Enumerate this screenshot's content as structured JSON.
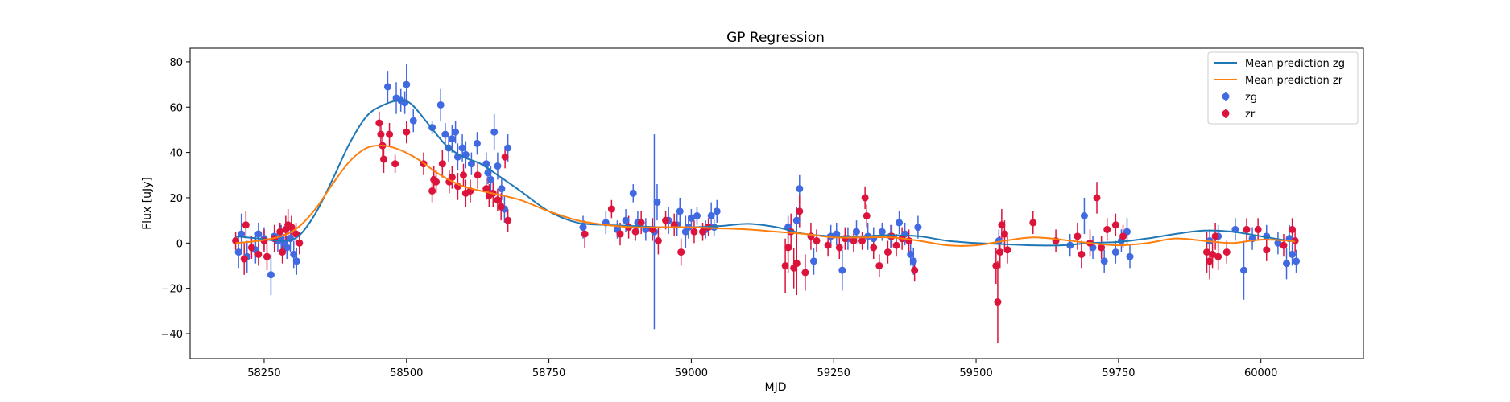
{
  "chart_data": {
    "type": "scatter",
    "title": "GP Regression",
    "xlabel": "MJD",
    "ylabel": "Flux [uJy]",
    "xlim": [
      58120,
      60180
    ],
    "ylim": [
      -51,
      86
    ],
    "xticks": [
      58250,
      58500,
      58750,
      59000,
      59250,
      59500,
      59750,
      60000
    ],
    "yticks": [
      -40,
      -20,
      0,
      20,
      40,
      60,
      80
    ],
    "grid": false,
    "legend_position": "top-right",
    "lines": [
      {
        "name": "Mean prediction zg",
        "color": "#1f77b4",
        "x": [
          58200,
          58240,
          58280,
          58310,
          58340,
          58370,
          58400,
          58430,
          58460,
          58490,
          58510,
          58540,
          58570,
          58600,
          58630,
          58660,
          58700,
          58750,
          58800,
          58850,
          58900,
          58950,
          59000,
          59050,
          59100,
          59150,
          59200,
          59250,
          59300,
          59350,
          59400,
          59450,
          59500,
          59550,
          59600,
          59650,
          59700,
          59750,
          59800,
          59850,
          59900,
          59950,
          60000,
          60050,
          60060
        ],
        "y": [
          3,
          2,
          1,
          3,
          13,
          28,
          44,
          56,
          61,
          63,
          61,
          52,
          43,
          38,
          35,
          30,
          23,
          14,
          9,
          8,
          7.5,
          7,
          7,
          7.5,
          8.5,
          7,
          4,
          3,
          3,
          3.5,
          3,
          1,
          0,
          -0.5,
          -1,
          -1,
          0,
          0.5,
          2,
          4,
          5.5,
          5,
          3,
          1,
          1
        ]
      },
      {
        "name": "Mean prediction zr",
        "color": "#ff7f0e",
        "x": [
          58200,
          58240,
          58280,
          58310,
          58340,
          58370,
          58400,
          58430,
          58460,
          58490,
          58520,
          58560,
          58600,
          58650,
          58700,
          58750,
          58800,
          58850,
          58900,
          58950,
          59000,
          59050,
          59100,
          59150,
          59200,
          59250,
          59300,
          59350,
          59400,
          59450,
          59500,
          59550,
          59600,
          59650,
          59700,
          59750,
          59800,
          59850,
          59900,
          59950,
          60000,
          60050,
          60060
        ],
        "y": [
          0,
          1,
          3,
          7,
          15,
          26,
          36,
          42,
          43,
          41,
          37,
          30,
          25,
          22,
          19,
          14,
          10,
          8,
          7,
          7,
          7,
          6.5,
          6,
          5,
          4,
          2.5,
          2.5,
          2.5,
          1,
          -1,
          -1,
          1,
          2.5,
          1.5,
          0,
          -1,
          0,
          2,
          1,
          0,
          1.5,
          1,
          0.5
        ]
      }
    ],
    "series": [
      {
        "name": "zg",
        "color": "#4169e1",
        "points": [
          [
            58205,
            -4,
            7
          ],
          [
            58210,
            4,
            9
          ],
          [
            58220,
            -6,
            7
          ],
          [
            58235,
            -3,
            6
          ],
          [
            58240,
            4,
            5
          ],
          [
            58250,
            2,
            5
          ],
          [
            58262,
            -14,
            9
          ],
          [
            58268,
            3,
            5
          ],
          [
            58274,
            1,
            5
          ],
          [
            58280,
            2,
            6
          ],
          [
            58285,
            0,
            4
          ],
          [
            58290,
            -2,
            5
          ],
          [
            58296,
            2,
            6
          ],
          [
            58302,
            -5,
            6
          ],
          [
            58307,
            -8,
            6
          ],
          [
            58467,
            69,
            7
          ],
          [
            58482,
            64,
            7
          ],
          [
            58490,
            63,
            5
          ],
          [
            58497,
            62,
            5
          ],
          [
            58500,
            70,
            9
          ],
          [
            58512,
            54,
            5
          ],
          [
            58545,
            51,
            3
          ],
          [
            58560,
            61,
            7
          ],
          [
            58568,
            48,
            5
          ],
          [
            58574,
            42,
            6
          ],
          [
            58580,
            46,
            6
          ],
          [
            58586,
            49,
            5
          ],
          [
            58590,
            38,
            6
          ],
          [
            58598,
            42,
            6
          ],
          [
            58604,
            39,
            6
          ],
          [
            58614,
            35,
            5
          ],
          [
            58624,
            44,
            5
          ],
          [
            58640,
            35,
            5
          ],
          [
            58643,
            31,
            5
          ],
          [
            58648,
            28,
            6
          ],
          [
            58654,
            49,
            8
          ],
          [
            58660,
            34,
            6
          ],
          [
            58667,
            24,
            5
          ],
          [
            58672,
            15,
            6
          ],
          [
            58678,
            42,
            6
          ],
          [
            58810,
            7,
            5
          ],
          [
            58850,
            9,
            5
          ],
          [
            58870,
            6,
            4
          ],
          [
            58885,
            10,
            5
          ],
          [
            58898,
            22,
            4
          ],
          [
            58906,
            9,
            5
          ],
          [
            58920,
            6,
            5
          ],
          [
            58935,
            5,
            43
          ],
          [
            58940,
            18,
            8
          ],
          [
            58960,
            10,
            6
          ],
          [
            58975,
            8,
            5
          ],
          [
            58980,
            14,
            6
          ],
          [
            58990,
            5,
            7
          ],
          [
            58995,
            7,
            5
          ],
          [
            59000,
            11,
            4
          ],
          [
            59010,
            12,
            4
          ],
          [
            59025,
            6,
            4
          ],
          [
            59035,
            12,
            6
          ],
          [
            59040,
            7,
            4
          ],
          [
            59045,
            14,
            5
          ],
          [
            59170,
            7,
            5
          ],
          [
            59185,
            10,
            6
          ],
          [
            59190,
            24,
            6
          ],
          [
            59215,
            -8,
            6
          ],
          [
            59245,
            3,
            5
          ],
          [
            59255,
            4,
            5
          ],
          [
            59265,
            -12,
            9
          ],
          [
            59275,
            2,
            5
          ],
          [
            59290,
            5,
            5
          ],
          [
            59310,
            3,
            6
          ],
          [
            59320,
            2,
            5
          ],
          [
            59335,
            5,
            4
          ],
          [
            59350,
            3,
            5
          ],
          [
            59365,
            9,
            5
          ],
          [
            59375,
            4,
            5
          ],
          [
            59385,
            -5,
            5
          ],
          [
            59390,
            -8,
            6
          ],
          [
            59398,
            7,
            5
          ],
          [
            59540,
            1,
            5
          ],
          [
            59665,
            -1,
            5
          ],
          [
            59690,
            12,
            8
          ],
          [
            59705,
            -2,
            5
          ],
          [
            59725,
            -8,
            5
          ],
          [
            59745,
            -4,
            5
          ],
          [
            59755,
            1,
            5
          ],
          [
            59765,
            5,
            6
          ],
          [
            59770,
            -6,
            5
          ],
          [
            59910,
            1,
            5
          ],
          [
            59925,
            3,
            5
          ],
          [
            59955,
            6,
            5
          ],
          [
            59970,
            -12,
            13
          ],
          [
            59985,
            2,
            5
          ],
          [
            60010,
            3,
            5
          ],
          [
            60030,
            0,
            5
          ],
          [
            60045,
            -9,
            7
          ],
          [
            60050,
            2,
            6
          ],
          [
            60055,
            -5,
            5
          ],
          [
            60062,
            -8,
            5
          ]
        ]
      },
      {
        "name": "zr",
        "color": "#dc143c",
        "points": [
          [
            58200,
            1,
            4
          ],
          [
            58215,
            -7,
            7
          ],
          [
            58218,
            8,
            6
          ],
          [
            58228,
            -2,
            5
          ],
          [
            58240,
            -5,
            5
          ],
          [
            58250,
            1,
            5
          ],
          [
            58255,
            -6,
            6
          ],
          [
            58268,
            2,
            6
          ],
          [
            58278,
            5,
            4
          ],
          [
            58282,
            -4,
            5
          ],
          [
            58288,
            6,
            6
          ],
          [
            58292,
            8,
            7
          ],
          [
            58298,
            7,
            5
          ],
          [
            58306,
            4,
            5
          ],
          [
            58312,
            0,
            5
          ],
          [
            58452,
            53,
            5
          ],
          [
            58455,
            48,
            5
          ],
          [
            58458,
            43,
            6
          ],
          [
            58460,
            37,
            6
          ],
          [
            58470,
            48,
            5
          ],
          [
            58480,
            35,
            4
          ],
          [
            58500,
            49,
            5
          ],
          [
            58530,
            35,
            5
          ],
          [
            58545,
            23,
            5
          ],
          [
            58548,
            28,
            6
          ],
          [
            58552,
            27,
            5
          ],
          [
            58563,
            35,
            6
          ],
          [
            58575,
            27,
            5
          ],
          [
            58580,
            29,
            5
          ],
          [
            58590,
            25,
            6
          ],
          [
            58600,
            30,
            5
          ],
          [
            58604,
            22,
            6
          ],
          [
            58612,
            23,
            5
          ],
          [
            58625,
            30,
            6
          ],
          [
            58640,
            24,
            5
          ],
          [
            58645,
            21,
            5
          ],
          [
            58652,
            22,
            6
          ],
          [
            58660,
            19,
            5
          ],
          [
            58666,
            16,
            6
          ],
          [
            58673,
            38,
            5
          ],
          [
            58678,
            10,
            5
          ],
          [
            58813,
            4,
            6
          ],
          [
            58860,
            15,
            4
          ],
          [
            58875,
            4,
            5
          ],
          [
            58890,
            7,
            5
          ],
          [
            58902,
            5,
            4
          ],
          [
            58912,
            9,
            5
          ],
          [
            58932,
            6,
            5
          ],
          [
            58942,
            1,
            6
          ],
          [
            58955,
            10,
            4
          ],
          [
            58970,
            8,
            5
          ],
          [
            58982,
            -4,
            6
          ],
          [
            59005,
            5,
            5
          ],
          [
            59020,
            5,
            4
          ],
          [
            59030,
            7,
            4
          ],
          [
            59165,
            -10,
            12
          ],
          [
            59170,
            -2,
            11
          ],
          [
            59175,
            5,
            8
          ],
          [
            59180,
            -11,
            9
          ],
          [
            59185,
            -9,
            14
          ],
          [
            59190,
            14,
            7
          ],
          [
            59200,
            -13,
            8
          ],
          [
            59210,
            3,
            6
          ],
          [
            59220,
            1,
            5
          ],
          [
            59240,
            -1,
            5
          ],
          [
            59260,
            -2,
            5
          ],
          [
            59270,
            2,
            5
          ],
          [
            59285,
            1,
            5
          ],
          [
            59300,
            1,
            4
          ],
          [
            59305,
            20,
            5
          ],
          [
            59308,
            12,
            5
          ],
          [
            59320,
            -2,
            5
          ],
          [
            59330,
            -10,
            5
          ],
          [
            59345,
            -4,
            5
          ],
          [
            59352,
            3,
            5
          ],
          [
            59360,
            -1,
            5
          ],
          [
            59370,
            2,
            5
          ],
          [
            59382,
            1,
            5
          ],
          [
            59392,
            -12,
            5
          ],
          [
            59535,
            -10,
            8
          ],
          [
            59538,
            -26,
            18
          ],
          [
            59542,
            -4,
            7
          ],
          [
            59545,
            8,
            7
          ],
          [
            59550,
            4,
            6
          ],
          [
            59555,
            -3,
            6
          ],
          [
            59600,
            9,
            5
          ],
          [
            59640,
            1,
            5
          ],
          [
            59678,
            3,
            6
          ],
          [
            59685,
            -5,
            6
          ],
          [
            59700,
            0,
            6
          ],
          [
            59712,
            20,
            7
          ],
          [
            59720,
            -2,
            5
          ],
          [
            59730,
            6,
            5
          ],
          [
            59745,
            8,
            5
          ],
          [
            59758,
            3,
            5
          ],
          [
            59905,
            -4,
            9
          ],
          [
            59910,
            -8,
            8
          ],
          [
            59915,
            -5,
            6
          ],
          [
            59920,
            3,
            6
          ],
          [
            59925,
            -6,
            6
          ],
          [
            59940,
            -4,
            5
          ],
          [
            59975,
            6,
            5
          ],
          [
            59995,
            6,
            5
          ],
          [
            60010,
            -3,
            5
          ],
          [
            60040,
            -1,
            5
          ],
          [
            60055,
            6,
            5
          ],
          [
            60060,
            1,
            5
          ]
        ]
      }
    ]
  }
}
